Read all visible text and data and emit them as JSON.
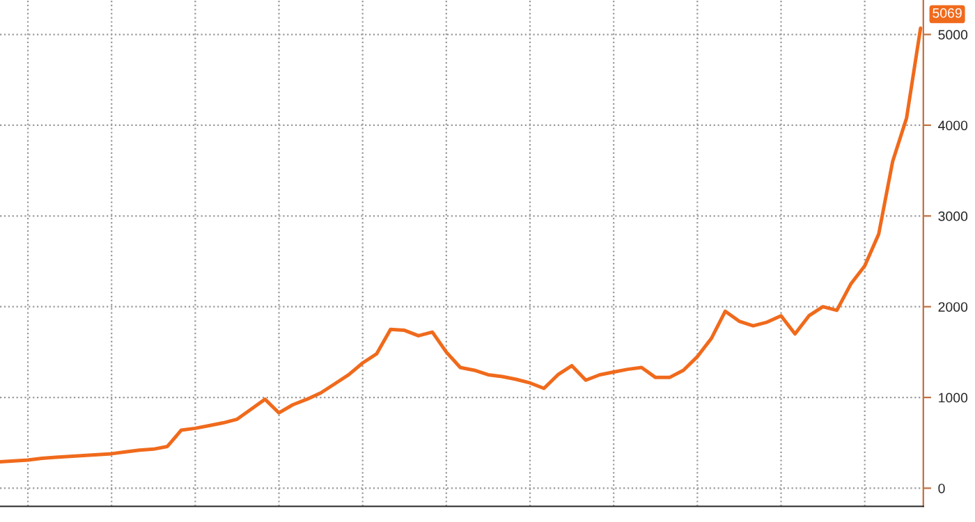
{
  "chart_data": {
    "type": "line",
    "categories": [
      null,
      null,
      null,
      null,
      null,
      null,
      null,
      null,
      null,
      null,
      null,
      null,
      null,
      null,
      null,
      null,
      null,
      null,
      null,
      null,
      null,
      null,
      null,
      null,
      null,
      null,
      null,
      null,
      null,
      null,
      null,
      null,
      null,
      null,
      null,
      null,
      null,
      null,
      null,
      null,
      null,
      null,
      null,
      null,
      null,
      null,
      null,
      null,
      null,
      null,
      null,
      null,
      null,
      null,
      null,
      null,
      null,
      null,
      null,
      null,
      null,
      null,
      null,
      null,
      null,
      null,
      null
    ],
    "series": [
      {
        "color": "#f06a1c",
        "values": [
          290,
          300,
          310,
          330,
          340,
          350,
          360,
          370,
          380,
          400,
          420,
          430,
          460,
          640,
          660,
          690,
          720,
          760,
          870,
          980,
          830,
          920,
          980,
          1050,
          1150,
          1250,
          1380,
          1480,
          1750,
          1740,
          1680,
          1720,
          1500,
          1330,
          1300,
          1250,
          1230,
          1200,
          1160,
          1100,
          1250,
          1350,
          1190,
          1250,
          1280,
          1310,
          1330,
          1220,
          1220,
          1300,
          1450,
          1650,
          1950,
          1840,
          1790,
          1830,
          1900,
          1700,
          1900,
          2000,
          1960,
          2250,
          2450,
          2800,
          3600,
          4080,
          5069
        ],
        "value_labels": [
          null,
          null,
          null,
          null,
          null,
          null,
          null,
          null,
          null,
          null,
          null,
          null,
          null,
          null,
          null,
          null,
          null,
          null,
          null,
          null,
          null,
          null,
          null,
          null,
          null,
          null,
          null,
          null,
          null,
          null,
          null,
          null,
          null,
          null,
          null,
          null,
          null,
          null,
          null,
          null,
          null,
          null,
          null,
          null,
          null,
          null,
          null,
          null,
          null,
          null,
          null,
          null,
          null,
          null,
          null,
          null,
          null,
          null,
          null,
          null,
          null,
          null,
          null,
          null,
          null,
          null,
          "5069"
        ]
      }
    ],
    "ylim": [
      -200,
      5380
    ],
    "yticks": [
      0,
      1000,
      2000,
      3000,
      4000,
      5000
    ],
    "grid": true,
    "tick_labels": "y",
    "line_style": "solid",
    "marker": "none"
  }
}
